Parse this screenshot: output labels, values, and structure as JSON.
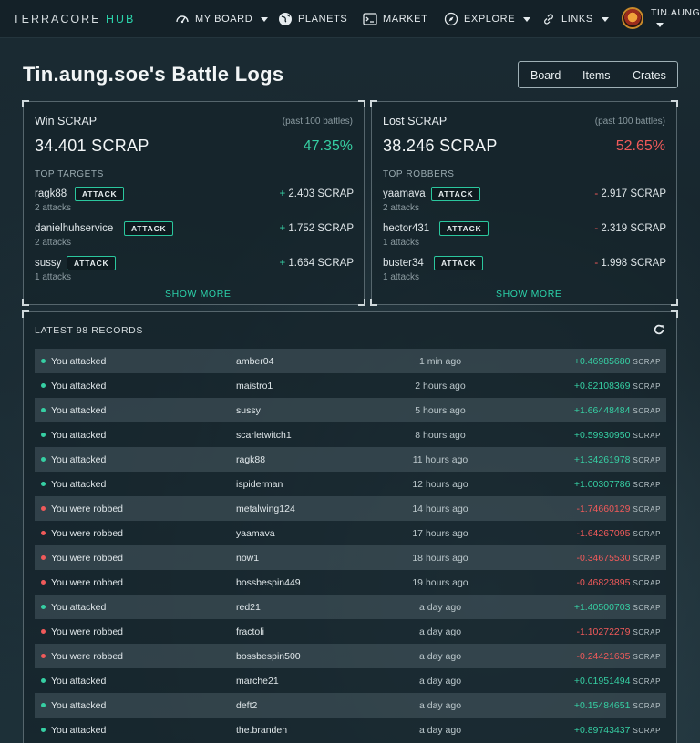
{
  "brand": {
    "main": "TERRACORE ",
    "accent": "HUB"
  },
  "nav": {
    "items": [
      {
        "label": "MY BOARD",
        "icon": "gauge-icon",
        "dropdown": true
      },
      {
        "label": "PLANETS",
        "icon": "globe-icon",
        "dropdown": false
      },
      {
        "label": "MARKET",
        "icon": "terminal-icon",
        "dropdown": false
      },
      {
        "label": "EXPLORE",
        "icon": "compass-icon",
        "dropdown": true
      },
      {
        "label": "LINKS",
        "icon": "link-icon",
        "dropdown": true
      }
    ],
    "user": "TIN.AUNG.S"
  },
  "page": {
    "title": "Tin.aung.soe's Battle Logs",
    "tabs": [
      "Board",
      "Items",
      "Crates"
    ]
  },
  "win": {
    "title": "Win SCRAP",
    "note": "(past 100 battles)",
    "amount": "34.401 SCRAP",
    "percent": "47.35%",
    "sub": "TOP TARGETS",
    "entries": [
      {
        "name": "ragk88",
        "attacks": "2 attacks",
        "sign": "+",
        "amount": "2.403 SCRAP"
      },
      {
        "name": "danielhuhservice",
        "attacks": "2 attacks",
        "sign": "+",
        "amount": "1.752 SCRAP"
      },
      {
        "name": "sussy",
        "attacks": "1 attacks",
        "sign": "+",
        "amount": "1.664 SCRAP"
      }
    ],
    "show_more": "SHOW MORE"
  },
  "lost": {
    "title": "Lost SCRAP",
    "note": "(past 100 battles)",
    "amount": "38.246 SCRAP",
    "percent": "52.65%",
    "sub": "TOP ROBBERS",
    "entries": [
      {
        "name": "yaamava",
        "attacks": "2 attacks",
        "sign": "-",
        "amount": "2.917 SCRAP"
      },
      {
        "name": "hector431",
        "attacks": "1 attacks",
        "sign": "-",
        "amount": "2.319 SCRAP"
      },
      {
        "name": "buster34",
        "attacks": "1 attacks",
        "sign": "-",
        "amount": "1.998 SCRAP"
      }
    ],
    "show_more": "SHOW MORE"
  },
  "attack_label": "ATTACK",
  "records": {
    "title": "LATEST 98 RECORDS",
    "unit": "SCRAP",
    "rows": [
      {
        "action": "You attacked",
        "who": "amber04",
        "when": "1 min ago",
        "value": "+0.46985680",
        "type": "win"
      },
      {
        "action": "You attacked",
        "who": "maistro1",
        "when": "2 hours ago",
        "value": "+0.82108369",
        "type": "win"
      },
      {
        "action": "You attacked",
        "who": "sussy",
        "when": "5 hours ago",
        "value": "+1.66448484",
        "type": "win"
      },
      {
        "action": "You attacked",
        "who": "scarletwitch1",
        "when": "8 hours ago",
        "value": "+0.59930950",
        "type": "win"
      },
      {
        "action": "You attacked",
        "who": "ragk88",
        "when": "11 hours ago",
        "value": "+1.34261978",
        "type": "win"
      },
      {
        "action": "You attacked",
        "who": "ispiderman",
        "when": "12 hours ago",
        "value": "+1.00307786",
        "type": "win"
      },
      {
        "action": "You were robbed",
        "who": "metalwing124",
        "when": "14 hours ago",
        "value": "-1.74660129",
        "type": "loss"
      },
      {
        "action": "You were robbed",
        "who": "yaamava",
        "when": "17 hours ago",
        "value": "-1.64267095",
        "type": "loss"
      },
      {
        "action": "You were robbed",
        "who": "now1",
        "when": "18 hours ago",
        "value": "-0.34675530",
        "type": "loss"
      },
      {
        "action": "You were robbed",
        "who": "bossbespin449",
        "when": "19 hours ago",
        "value": "-0.46823895",
        "type": "loss"
      },
      {
        "action": "You attacked",
        "who": "red21",
        "when": "a day ago",
        "value": "+1.40500703",
        "type": "win"
      },
      {
        "action": "You were robbed",
        "who": "fractoli",
        "when": "a day ago",
        "value": "-1.10272279",
        "type": "loss"
      },
      {
        "action": "You were robbed",
        "who": "bossbespin500",
        "when": "a day ago",
        "value": "-0.24421635",
        "type": "loss"
      },
      {
        "action": "You attacked",
        "who": "marche21",
        "when": "a day ago",
        "value": "+0.01951494",
        "type": "win"
      },
      {
        "action": "You attacked",
        "who": "deft2",
        "when": "a day ago",
        "value": "+0.15484651",
        "type": "win"
      },
      {
        "action": "You attacked",
        "who": "the.branden",
        "when": "a day ago",
        "value": "+0.89743437",
        "type": "win"
      }
    ]
  },
  "colors": {
    "accent": "#2bd1a9",
    "win": "#36cfa3",
    "loss": "#f05a5a"
  }
}
